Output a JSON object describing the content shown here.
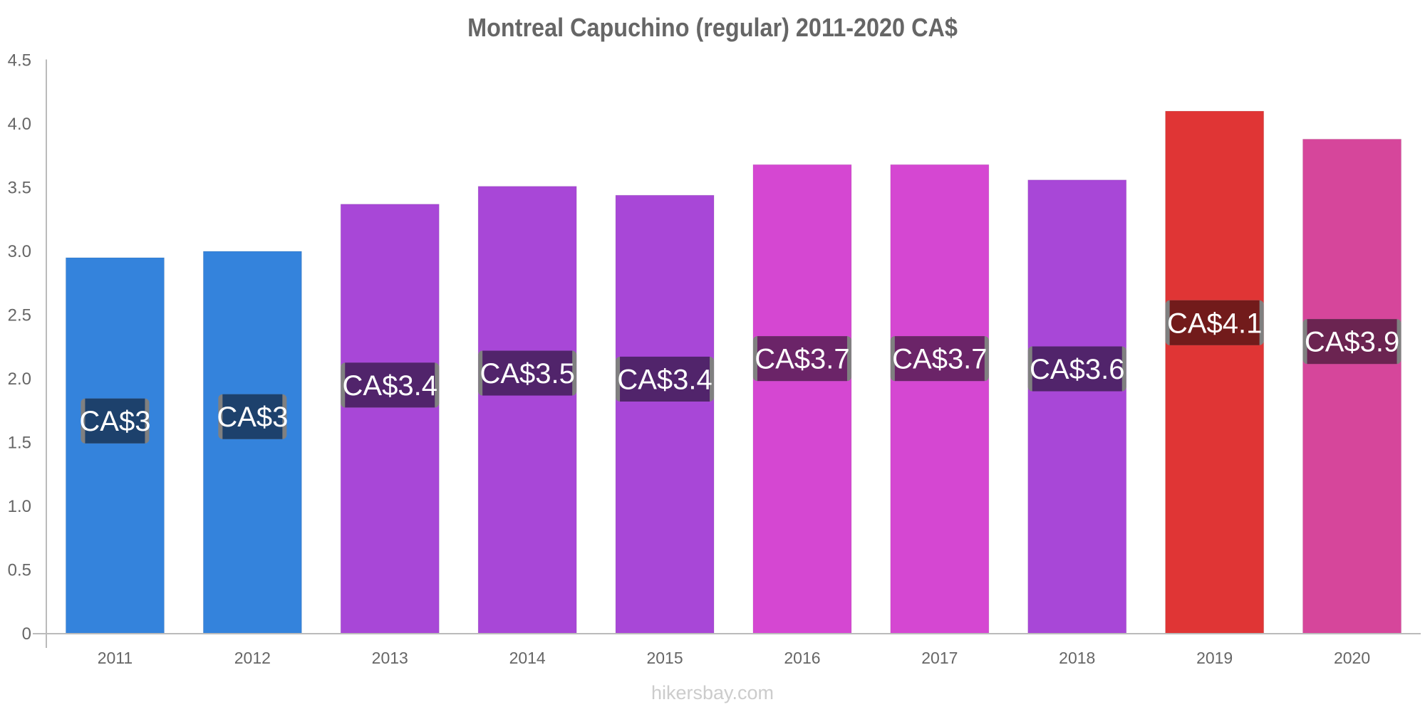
{
  "chart_data": {
    "type": "bar",
    "title": "Montreal Capuchino (regular) 2011-2020 CA$",
    "xlabel": "",
    "ylabel": "",
    "ylim": [
      0,
      4.5
    ],
    "yticks": [
      "0",
      "0.5",
      "1.0",
      "1.5",
      "2.0",
      "2.5",
      "3.0",
      "3.5",
      "4.0",
      "4.5"
    ],
    "ytick_values": [
      0,
      0.5,
      1.0,
      1.5,
      2.0,
      2.5,
      3.0,
      3.5,
      4.0,
      4.5
    ],
    "grid": false,
    "categories": [
      "2011",
      "2012",
      "2013",
      "2014",
      "2015",
      "2016",
      "2017",
      "2018",
      "2019",
      "2020"
    ],
    "values": [
      2.95,
      3.0,
      3.37,
      3.51,
      3.44,
      3.68,
      3.68,
      3.56,
      4.1,
      3.88
    ],
    "data_labels": [
      "CA$3",
      "CA$3",
      "CA$3.4",
      "CA$3.5",
      "CA$3.4",
      "CA$3.7",
      "CA$3.7",
      "CA$3.6",
      "CA$4.1",
      "CA$3.9"
    ],
    "bar_colors": [
      "#3483dc",
      "#3483dc",
      "#a847d7",
      "#a847d7",
      "#a847d7",
      "#d547d2",
      "#d547d2",
      "#a847d7",
      "#e03535",
      "#d6469b"
    ],
    "label_colors": [
      "#1d416c",
      "#1d416c",
      "#51246b",
      "#51246b",
      "#51246b",
      "#6b2468",
      "#6b2468",
      "#51246b",
      "#721b1b",
      "#6b2451"
    ]
  },
  "watermark": "hikersbay.com"
}
